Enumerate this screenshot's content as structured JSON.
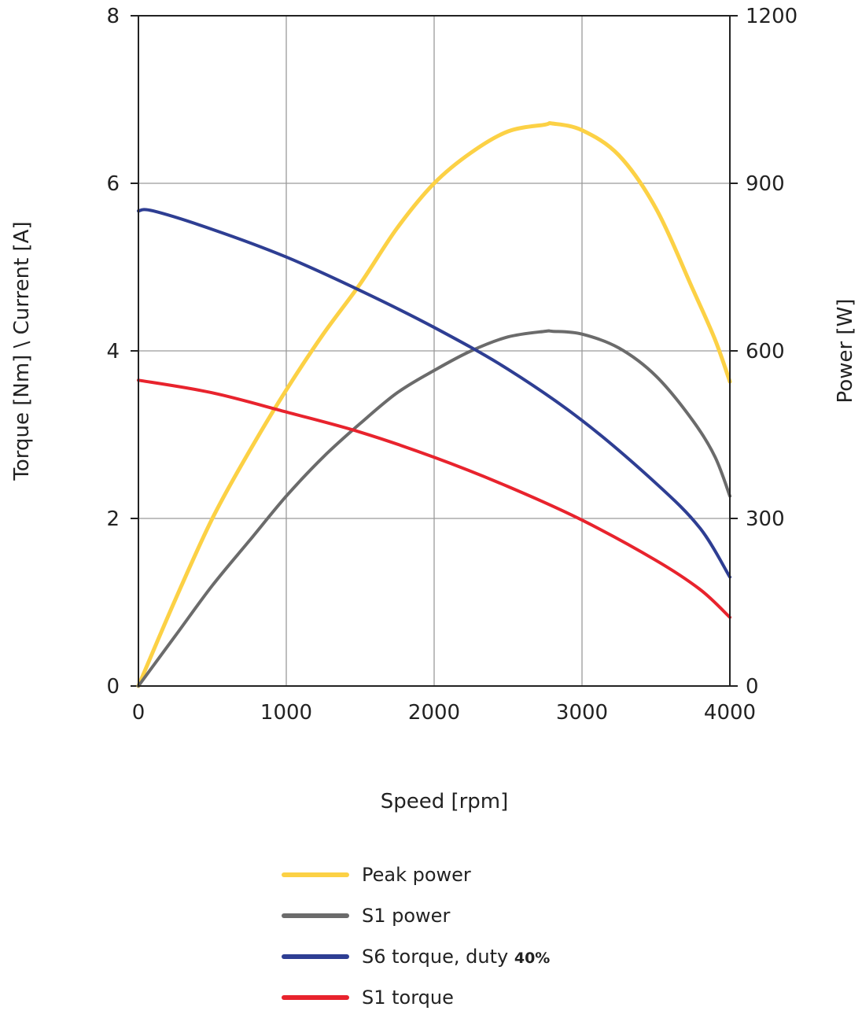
{
  "chart_data": {
    "type": "line",
    "xlabel": "Speed [rpm]",
    "ylabel_left": "Torque [Nm] \\ Current [A]",
    "ylabel_right": "Power [W]",
    "xlim": [
      0,
      4000
    ],
    "ylim_left": [
      0,
      8
    ],
    "ylim_right": [
      0,
      1200
    ],
    "xticks": [
      "0",
      "1000",
      "2000",
      "3000",
      "4000"
    ],
    "yticks_left": [
      "0",
      "2",
      "4",
      "6",
      "8"
    ],
    "yticks_right": [
      "0",
      "300",
      "600",
      "900",
      "1200"
    ],
    "grid": true,
    "legend_position": "bottom",
    "series": [
      {
        "name": "Peak power",
        "axis": "right",
        "color": "#FCD145",
        "x": [
          0,
          250,
          500,
          750,
          1000,
          1250,
          1500,
          1750,
          2000,
          2250,
          2500,
          2750,
          2800,
          3000,
          3250,
          3500,
          3750,
          3900,
          4000
        ],
        "y": [
          0,
          155,
          300,
          420,
          530,
          630,
          720,
          820,
          900,
          955,
          993,
          1005,
          1007,
          995,
          950,
          855,
          710,
          620,
          545
        ]
      },
      {
        "name": "S1 power",
        "axis": "right",
        "color": "#6B6B6B",
        "x": [
          0,
          250,
          500,
          750,
          1000,
          1250,
          1500,
          1750,
          2000,
          2250,
          2500,
          2750,
          2800,
          3000,
          3250,
          3500,
          3750,
          3900,
          4000
        ],
        "y": [
          0,
          90,
          180,
          260,
          340,
          410,
          470,
          525,
          565,
          600,
          625,
          635,
          635,
          630,
          605,
          555,
          475,
          410,
          340
        ]
      },
      {
        "name": "S6 torque, duty",
        "name_suffix": "40%",
        "axis": "left",
        "color": "#2E3E93",
        "x": [
          0,
          100,
          500,
          1000,
          1500,
          2000,
          2500,
          3000,
          3500,
          3800,
          4000
        ],
        "y": [
          5.67,
          5.67,
          5.45,
          5.12,
          4.72,
          4.28,
          3.78,
          3.17,
          2.42,
          1.88,
          1.3
        ]
      },
      {
        "name": "S1 torque",
        "axis": "left",
        "color": "#E8232D",
        "x": [
          0,
          500,
          1000,
          1500,
          2000,
          2500,
          3000,
          3500,
          3800,
          4000
        ],
        "y": [
          3.65,
          3.5,
          3.27,
          3.03,
          2.73,
          2.38,
          1.98,
          1.5,
          1.15,
          0.82
        ]
      }
    ]
  }
}
